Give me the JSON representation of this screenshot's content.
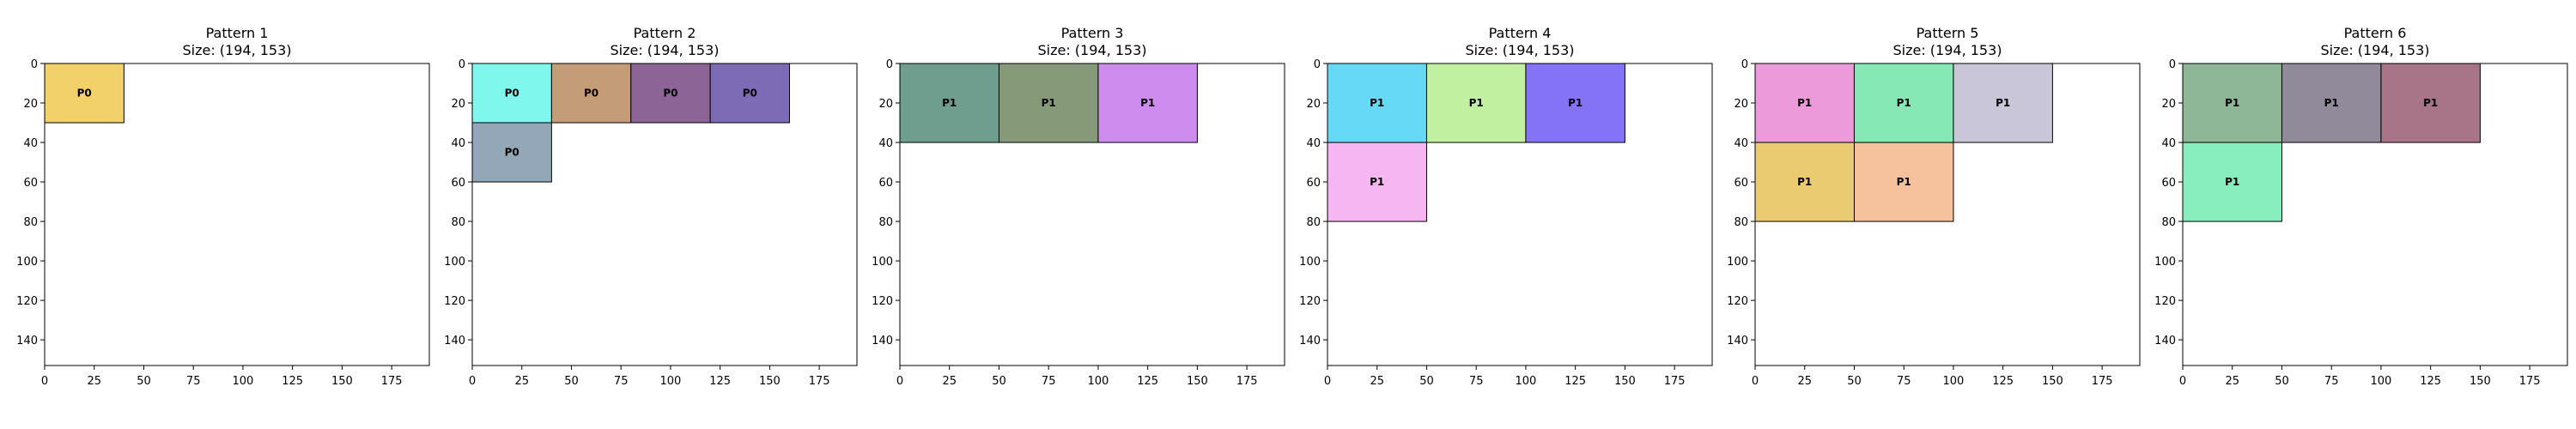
{
  "chart_data": [
    {
      "type": "rectangles",
      "title": "Pattern 1",
      "subtitle": "Size: (194, 153)",
      "xlim": [
        0,
        194
      ],
      "ylim": [
        153,
        0
      ],
      "xticks": [
        0,
        25,
        50,
        75,
        100,
        125,
        150,
        175
      ],
      "yticks": [
        0,
        20,
        40,
        60,
        80,
        100,
        120,
        140
      ],
      "grid": false,
      "rects": [
        {
          "x": 0,
          "y": 0,
          "w": 40,
          "h": 30,
          "label": "P0",
          "color": "#f2d16b"
        }
      ]
    },
    {
      "type": "rectangles",
      "title": "Pattern 2",
      "subtitle": "Size: (194, 153)",
      "xlim": [
        0,
        194
      ],
      "ylim": [
        153,
        0
      ],
      "xticks": [
        0,
        25,
        50,
        75,
        100,
        125,
        150,
        175
      ],
      "yticks": [
        0,
        20,
        40,
        60,
        80,
        100,
        120,
        140
      ],
      "grid": false,
      "rects": [
        {
          "x": 0,
          "y": 0,
          "w": 40,
          "h": 30,
          "label": "P0",
          "color": "#7ff7ec"
        },
        {
          "x": 40,
          "y": 0,
          "w": 40,
          "h": 30,
          "label": "P0",
          "color": "#c49d78"
        },
        {
          "x": 80,
          "y": 0,
          "w": 40,
          "h": 30,
          "label": "P0",
          "color": "#8c6496"
        },
        {
          "x": 120,
          "y": 0,
          "w": 40,
          "h": 30,
          "label": "P0",
          "color": "#7d6bb5"
        },
        {
          "x": 0,
          "y": 30,
          "w": 40,
          "h": 30,
          "label": "P0",
          "color": "#93a7b8"
        }
      ]
    },
    {
      "type": "rectangles",
      "title": "Pattern 3",
      "subtitle": "Size: (194, 153)",
      "xlim": [
        0,
        194
      ],
      "ylim": [
        153,
        0
      ],
      "xticks": [
        0,
        25,
        50,
        75,
        100,
        125,
        150,
        175
      ],
      "yticks": [
        0,
        20,
        40,
        60,
        80,
        100,
        120,
        140
      ],
      "grid": false,
      "rects": [
        {
          "x": 0,
          "y": 0,
          "w": 50,
          "h": 40,
          "label": "P1",
          "color": "#6f9e8e"
        },
        {
          "x": 50,
          "y": 0,
          "w": 50,
          "h": 40,
          "label": "P1",
          "color": "#869a7a"
        },
        {
          "x": 100,
          "y": 0,
          "w": 50,
          "h": 40,
          "label": "P1",
          "color": "#cf8cef"
        }
      ]
    },
    {
      "type": "rectangles",
      "title": "Pattern 4",
      "subtitle": "Size: (194, 153)",
      "xlim": [
        0,
        194
      ],
      "ylim": [
        153,
        0
      ],
      "xticks": [
        0,
        25,
        50,
        75,
        100,
        125,
        150,
        175
      ],
      "yticks": [
        0,
        20,
        40,
        60,
        80,
        100,
        120,
        140
      ],
      "grid": false,
      "rects": [
        {
          "x": 0,
          "y": 0,
          "w": 50,
          "h": 40,
          "label": "P1",
          "color": "#66d9f7"
        },
        {
          "x": 50,
          "y": 0,
          "w": 50,
          "h": 40,
          "label": "P1",
          "color": "#c2f0a1"
        },
        {
          "x": 100,
          "y": 0,
          "w": 50,
          "h": 40,
          "label": "P1",
          "color": "#8473f7"
        },
        {
          "x": 0,
          "y": 40,
          "w": 50,
          "h": 40,
          "label": "P1",
          "color": "#f6b6f2"
        }
      ]
    },
    {
      "type": "rectangles",
      "title": "Pattern 5",
      "subtitle": "Size: (194, 153)",
      "xlim": [
        0,
        194
      ],
      "ylim": [
        153,
        0
      ],
      "xticks": [
        0,
        25,
        50,
        75,
        100,
        125,
        150,
        175
      ],
      "yticks": [
        0,
        20,
        40,
        60,
        80,
        100,
        120,
        140
      ],
      "grid": false,
      "rects": [
        {
          "x": 0,
          "y": 0,
          "w": 50,
          "h": 40,
          "label": "P1",
          "color": "#ec9ada"
        },
        {
          "x": 50,
          "y": 0,
          "w": 50,
          "h": 40,
          "label": "P1",
          "color": "#86e8b5"
        },
        {
          "x": 100,
          "y": 0,
          "w": 50,
          "h": 40,
          "label": "P1",
          "color": "#c9c6da"
        },
        {
          "x": 0,
          "y": 40,
          "w": 50,
          "h": 40,
          "label": "P1",
          "color": "#ebcb72"
        },
        {
          "x": 50,
          "y": 40,
          "w": 50,
          "h": 40,
          "label": "P1",
          "color": "#f6c19d"
        }
      ]
    },
    {
      "type": "rectangles",
      "title": "Pattern 6",
      "subtitle": "Size: (194, 153)",
      "xlim": [
        0,
        194
      ],
      "ylim": [
        153,
        0
      ],
      "xticks": [
        0,
        25,
        50,
        75,
        100,
        125,
        150,
        175
      ],
      "yticks": [
        0,
        20,
        40,
        60,
        80,
        100,
        120,
        140
      ],
      "grid": false,
      "rects": [
        {
          "x": 0,
          "y": 0,
          "w": 50,
          "h": 40,
          "label": "P1",
          "color": "#8db796"
        },
        {
          "x": 50,
          "y": 0,
          "w": 50,
          "h": 40,
          "label": "P1",
          "color": "#908a9a"
        },
        {
          "x": 100,
          "y": 0,
          "w": 50,
          "h": 40,
          "label": "P1",
          "color": "#a87487"
        },
        {
          "x": 0,
          "y": 40,
          "w": 50,
          "h": 40,
          "label": "P1",
          "color": "#88eebd"
        }
      ]
    }
  ]
}
